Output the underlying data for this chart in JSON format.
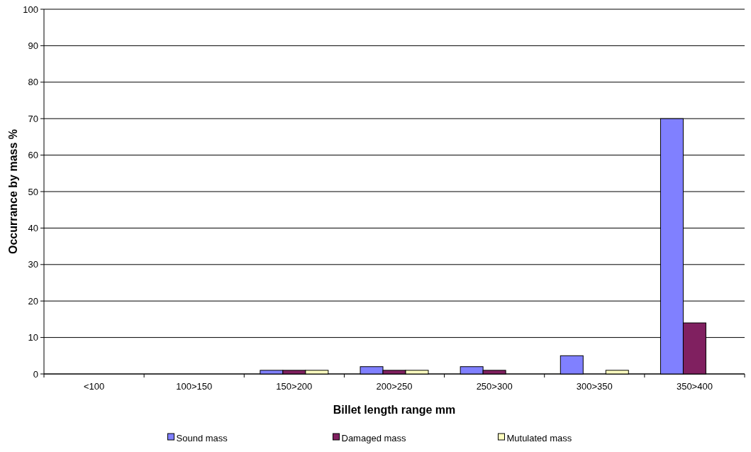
{
  "chart_data": {
    "type": "bar",
    "xlabel": "Billet length range mm",
    "ylabel": "Occurrance by mass %",
    "categories": [
      "<100",
      "100>150",
      "150>200",
      "200>250",
      "250>300",
      "300>350",
      "350>400"
    ],
    "series": [
      {
        "name": "Sound mass",
        "color": "#8080ff",
        "values": [
          0,
          0,
          1,
          2,
          2,
          5,
          70
        ]
      },
      {
        "name": "Damaged mass",
        "color": "#802060",
        "values": [
          0,
          0,
          1,
          1,
          1,
          0,
          14
        ]
      },
      {
        "name": "Mutulated mass",
        "color": "#ffffc0",
        "values": [
          0,
          0,
          1,
          1,
          0,
          1,
          0
        ]
      }
    ],
    "ylim": [
      0,
      100
    ],
    "yticks": [
      0,
      10,
      20,
      30,
      40,
      50,
      60,
      70,
      80,
      90,
      100
    ],
    "grid": "y",
    "legend": "bottom"
  }
}
